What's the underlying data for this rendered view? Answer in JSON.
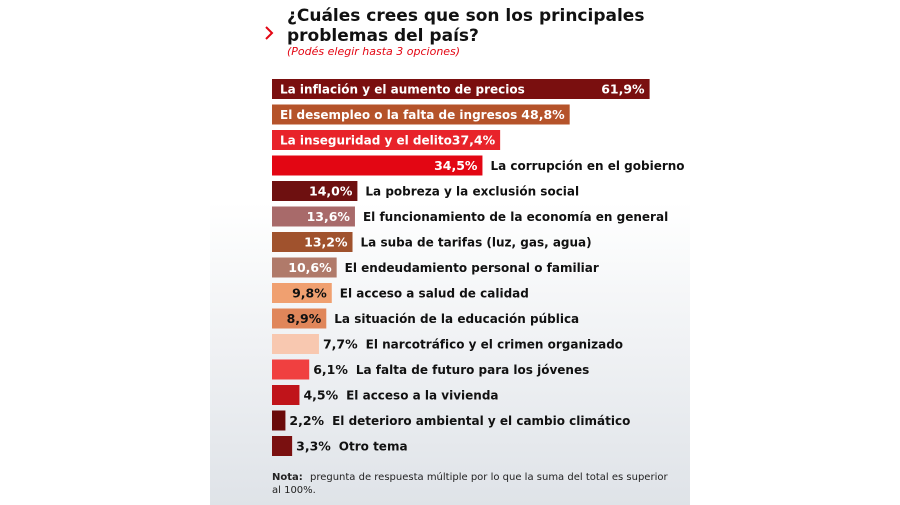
{
  "chart_data": {
    "type": "bar",
    "orientation": "horizontal",
    "title": "¿Cuáles crees que son los principales problemas del país?",
    "subtitle": "(Podés elegir hasta 3 opciones)",
    "categories": [
      "La inflación y el aumento de precios",
      "El desempleo o la falta de ingresos",
      "La inseguridad y el delito",
      "La corrupción en el gobierno",
      "La pobreza y la exclusión social",
      "El funcionamiento de la economía en general",
      "La suba de tarifas (luz, gas, agua)",
      "El endeudamiento personal o familiar",
      "El acceso a salud de calidad",
      "La situación de la educación pública",
      "El narcotráfico y el crimen organizado",
      "La falta de futuro para los jóvenes",
      "El acceso a la vivienda",
      "El deterioro ambiental y el cambio climático",
      "Otro tema"
    ],
    "values": [
      61.9,
      48.8,
      37.4,
      34.5,
      14.0,
      13.6,
      13.2,
      10.6,
      9.8,
      8.9,
      7.7,
      6.1,
      4.5,
      2.2,
      3.3
    ],
    "value_labels": [
      "61,9%",
      "48,8%",
      "37,4%",
      "34,5%",
      "14,0%",
      "13,6%",
      "13,2%",
      "10,6%",
      "9,8%",
      "8,9%",
      "7,7%",
      "6,1%",
      "4,5%",
      "2,2%",
      "3,3%"
    ],
    "colors": [
      "#7a0f0f",
      "#b5532a",
      "#e8232a",
      "#e30613",
      "#6e1010",
      "#a86a6a",
      "#a0522d",
      "#b07a6a",
      "#f0a070",
      "#e0865a",
      "#f8c8b0",
      "#f04040",
      "#c0141a",
      "#6a0a0a",
      "#7a1010"
    ],
    "note_label": "Nota:",
    "note": "pregunta de respuesta múltiple por lo que la suma del total es superior al 100%."
  }
}
